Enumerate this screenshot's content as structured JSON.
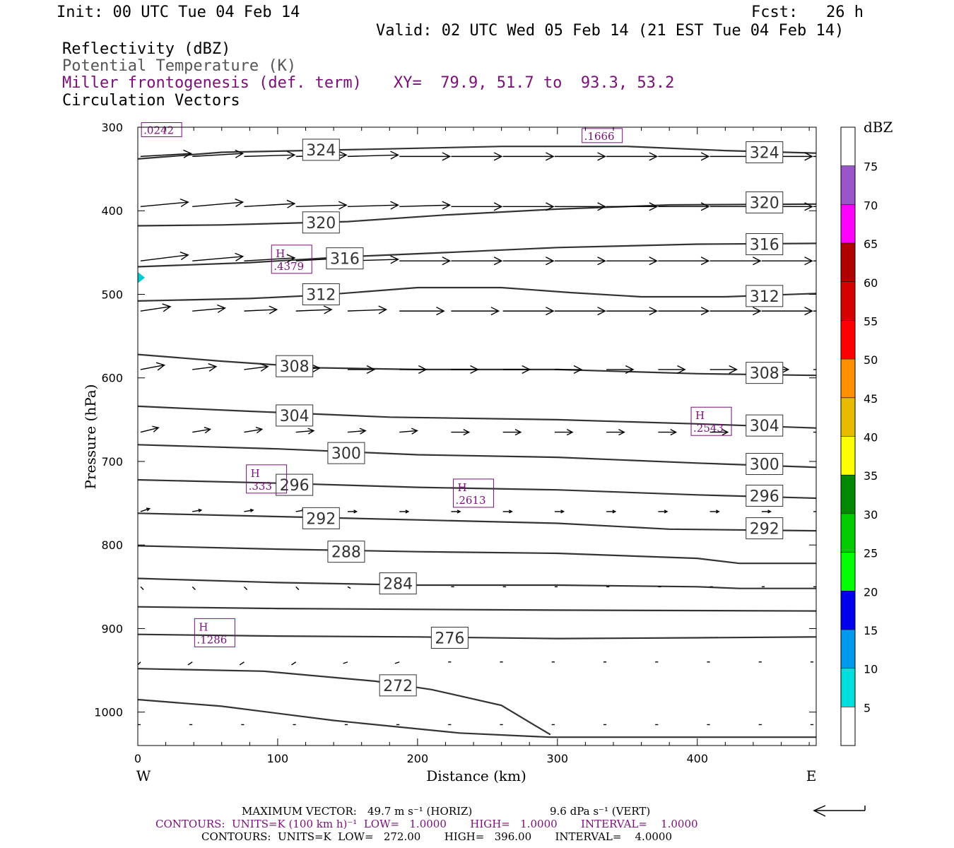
{
  "header": {
    "init": "Init: 00 UTC Tue 04 Feb 14",
    "fcst": "Fcst:   26 h",
    "valid": "Valid: 02 UTC Wed 05 Feb 14 (21 EST Tue 04 Feb 14)",
    "field1": "Reflectivity (dBZ)",
    "field2": "Potential Temperature (K)",
    "field3": "Miller frontogenesis (def. term)",
    "xy": "XY=  79.9, 51.7 to  93.3, 53.2",
    "field4": "Circulation Vectors"
  },
  "footer": {
    "max_vector_label": "MAXIMUM VECTOR:",
    "max_vector_horiz": "49.7 m s⁻¹ (HORIZ)",
    "max_vector_vert": "9.6 dPa s⁻¹ (VERT)",
    "contours_frontogenesis": "CONTOURS:  UNITS=K (100 km h)⁻¹  LOW=   1.0000       HIGH=   1.0000       INTERVAL=    1.0000",
    "contours_theta": "CONTOURS:  UNITS=K  LOW=   272.00       HIGH=   396.00       INTERVAL=    4.0000"
  },
  "colors": {
    "purple": "#7a0f7a",
    "contour": "#333333",
    "arrow": "#000000"
  },
  "chart_data": {
    "type": "cross-section",
    "xlabel": "Distance (km)",
    "ylabel": "Pressure (hPa)",
    "xlim": [
      0,
      485
    ],
    "ylim": [
      1040,
      300
    ],
    "xticks": [
      0,
      100,
      200,
      300,
      400
    ],
    "yticks": [
      300,
      400,
      500,
      600,
      700,
      800,
      900,
      1000
    ],
    "left_end_label": "W",
    "right_end_label": "E",
    "theta_contours": [
      {
        "value": 324,
        "label": "324",
        "points": [
          [
            0,
            338
          ],
          [
            60,
            330
          ],
          [
            150,
            327
          ],
          [
            260,
            323
          ],
          [
            350,
            323
          ],
          [
            420,
            328
          ],
          [
            485,
            331
          ]
        ],
        "label_at": [
          [
            131,
            327
          ],
          [
            448,
            330
          ]
        ]
      },
      {
        "value": 320,
        "label": "320",
        "points": [
          [
            0,
            418
          ],
          [
            60,
            417
          ],
          [
            150,
            413
          ],
          [
            220,
            405
          ],
          [
            300,
            398
          ],
          [
            380,
            393
          ],
          [
            485,
            392
          ]
        ],
        "label_at": [
          [
            131,
            414
          ],
          [
            448,
            390
          ]
        ]
      },
      {
        "value": 316,
        "label": "316",
        "points": [
          [
            0,
            467
          ],
          [
            80,
            462
          ],
          [
            150,
            455
          ],
          [
            220,
            450
          ],
          [
            300,
            444
          ],
          [
            400,
            440
          ],
          [
            485,
            439
          ]
        ],
        "label_at": [
          [
            148,
            457
          ],
          [
            448,
            440
          ]
        ]
      },
      {
        "value": 312,
        "label": "312",
        "points": [
          [
            0,
            508
          ],
          [
            80,
            505
          ],
          [
            130,
            501
          ],
          [
            200,
            492
          ],
          [
            260,
            492
          ],
          [
            310,
            498
          ],
          [
            360,
            503
          ],
          [
            420,
            503
          ],
          [
            485,
            499
          ]
        ],
        "label_at": [
          [
            131,
            500
          ],
          [
            448,
            502
          ]
        ]
      },
      {
        "value": 308,
        "label": "308",
        "points": [
          [
            0,
            572
          ],
          [
            60,
            580
          ],
          [
            130,
            588
          ],
          [
            200,
            590
          ],
          [
            300,
            590
          ],
          [
            400,
            595
          ],
          [
            485,
            597
          ]
        ],
        "label_at": [
          [
            112,
            586
          ],
          [
            448,
            594
          ]
        ]
      },
      {
        "value": 304,
        "label": "304",
        "points": [
          [
            0,
            634
          ],
          [
            80,
            640
          ],
          [
            180,
            647
          ],
          [
            300,
            650
          ],
          [
            400,
            655
          ],
          [
            485,
            660
          ]
        ],
        "label_at": [
          [
            112,
            645
          ],
          [
            448,
            657
          ]
        ]
      },
      {
        "value": 300,
        "label": "300",
        "points": [
          [
            0,
            680
          ],
          [
            100,
            685
          ],
          [
            200,
            692
          ],
          [
            300,
            695
          ],
          [
            400,
            702
          ],
          [
            485,
            707
          ]
        ],
        "label_at": [
          [
            149,
            690
          ],
          [
            448,
            703
          ]
        ]
      },
      {
        "value": 296,
        "label": "296",
        "points": [
          [
            0,
            722
          ],
          [
            100,
            726
          ],
          [
            200,
            731
          ],
          [
            300,
            734
          ],
          [
            400,
            740
          ],
          [
            485,
            744
          ]
        ],
        "label_at": [
          [
            112,
            728
          ],
          [
            448,
            741
          ]
        ]
      },
      {
        "value": 292,
        "label": "292",
        "points": [
          [
            0,
            762
          ],
          [
            100,
            766
          ],
          [
            200,
            770
          ],
          [
            300,
            774
          ],
          [
            380,
            781
          ],
          [
            485,
            783
          ]
        ],
        "label_at": [
          [
            131,
            768
          ],
          [
            448,
            780
          ]
        ]
      },
      {
        "value": 288,
        "label": "288",
        "points": [
          [
            0,
            801
          ],
          [
            100,
            805
          ],
          [
            200,
            808
          ],
          [
            300,
            810
          ],
          [
            400,
            816
          ],
          [
            430,
            822
          ],
          [
            485,
            822
          ]
        ],
        "label_at": [
          [
            149,
            808
          ],
          [
            0,
            0
          ]
        ]
      },
      {
        "value": 284,
        "label": "284",
        "points": [
          [
            0,
            840
          ],
          [
            100,
            845
          ],
          [
            200,
            848
          ],
          [
            300,
            848
          ],
          [
            400,
            850
          ],
          [
            430,
            852
          ],
          [
            485,
            852
          ]
        ],
        "label_at": [
          [
            186,
            846
          ],
          [
            0,
            0
          ]
        ]
      },
      {
        "value": 280,
        "label": "",
        "points": [
          [
            0,
            874
          ],
          [
            100,
            876
          ],
          [
            200,
            877
          ],
          [
            300,
            878
          ],
          [
            485,
            879
          ]
        ],
        "label_at": []
      },
      {
        "value": 276,
        "label": "276",
        "points": [
          [
            0,
            907
          ],
          [
            100,
            909
          ],
          [
            200,
            910
          ],
          [
            300,
            912
          ],
          [
            400,
            911
          ],
          [
            485,
            910
          ]
        ],
        "label_at": [
          [
            223,
            911
          ],
          [
            0,
            0
          ]
        ]
      },
      {
        "value": 272,
        "label": "272",
        "points": [
          [
            0,
            948
          ],
          [
            90,
            951
          ],
          [
            170,
            963
          ],
          [
            210,
            973
          ],
          [
            260,
            992
          ],
          [
            280,
            1012
          ],
          [
            295,
            1027
          ]
        ],
        "label_at": [
          [
            186,
            968
          ],
          [
            0,
            0
          ]
        ]
      },
      {
        "value": 268,
        "label": "",
        "points": [
          [
            0,
            985
          ],
          [
            60,
            993
          ],
          [
            140,
            1010
          ],
          [
            230,
            1025
          ],
          [
            295,
            1030
          ],
          [
            485,
            1030
          ]
        ],
        "label_at": []
      }
    ],
    "frontogenesis_maxima": [
      {
        "letter": "",
        "value": ".0242",
        "x": 17,
        "p": 303
      },
      {
        "letter": "",
        "value": ".1666",
        "x": 332,
        "p": 310
      },
      {
        "letter": "H",
        "value": ".4379",
        "x": 110,
        "p": 458
      },
      {
        "letter": "H",
        "value": ".2543",
        "x": 410,
        "p": 652
      },
      {
        "letter": "H",
        "value": ".333",
        "x": 92,
        "p": 721
      },
      {
        "letter": "H",
        "value": ".2613",
        "x": 240,
        "p": 738
      },
      {
        "letter": "H",
        "value": ".1286",
        "x": 55,
        "p": 905
      }
    ],
    "vector_rows": [
      {
        "p": 335,
        "x": [
          0,
          37,
          74,
          111,
          148,
          185,
          222,
          259,
          296,
          333,
          370,
          407,
          444,
          481
        ],
        "u": [
          34,
          34,
          34,
          34,
          34,
          34,
          34,
          34,
          34,
          34,
          34,
          34,
          34,
          34
        ],
        "w": [
          2,
          2,
          1,
          1,
          1,
          0,
          0,
          0,
          0,
          0,
          0,
          0,
          0,
          0
        ]
      },
      {
        "p": 395,
        "x": [
          0,
          37,
          74,
          111,
          148,
          185,
          222,
          259,
          296,
          333,
          370,
          407,
          444,
          481
        ],
        "u": [
          32,
          34,
          34,
          34,
          34,
          34,
          34,
          34,
          34,
          34,
          34,
          34,
          34,
          34
        ],
        "w": [
          3,
          3,
          2,
          1,
          1,
          1,
          0,
          0,
          0,
          0,
          0,
          0,
          0,
          0
        ]
      },
      {
        "p": 460,
        "x": [
          0,
          37,
          74,
          111,
          148,
          185,
          222,
          259,
          296,
          333,
          370,
          407,
          444,
          481
        ],
        "u": [
          32,
          34,
          34,
          34,
          34,
          34,
          34,
          34,
          34,
          34,
          34,
          34,
          34,
          34
        ],
        "w": [
          4,
          3,
          2,
          2,
          1,
          0,
          0,
          0,
          0,
          0,
          0,
          0,
          0,
          0
        ]
      },
      {
        "p": 520,
        "x": [
          0,
          37,
          74,
          111,
          148,
          185,
          222,
          259,
          296,
          333,
          370,
          407,
          444,
          481
        ],
        "u": [
          20,
          22,
          22,
          24,
          26,
          30,
          32,
          34,
          34,
          34,
          34,
          34,
          34,
          34
        ],
        "w": [
          3,
          2,
          1,
          1,
          1,
          0,
          0,
          0,
          0,
          0,
          0,
          0,
          0,
          0
        ]
      },
      {
        "p": 590,
        "x": [
          0,
          37,
          74,
          111,
          148,
          185,
          222,
          259,
          296,
          333,
          370,
          407,
          444,
          481
        ],
        "u": [
          16,
          16,
          16,
          16,
          18,
          18,
          18,
          18,
          18,
          18,
          18,
          18,
          18,
          18
        ],
        "w": [
          3,
          2,
          2,
          1,
          0,
          0,
          0,
          0,
          0,
          0,
          0,
          0,
          0,
          0
        ]
      },
      {
        "p": 665,
        "x": [
          0,
          37,
          74,
          111,
          148,
          185,
          222,
          259,
          296,
          333,
          370,
          407,
          444,
          481
        ],
        "u": [
          12,
          12,
          12,
          12,
          12,
          12,
          12,
          12,
          12,
          12,
          12,
          12,
          12,
          12
        ],
        "w": [
          3,
          2,
          2,
          1,
          1,
          1,
          0,
          0,
          0,
          0,
          0,
          0,
          0,
          0
        ]
      },
      {
        "p": 760,
        "x": [
          0,
          37,
          74,
          111,
          148,
          185,
          222,
          259,
          296,
          333,
          370,
          407,
          444,
          481
        ],
        "u": [
          6,
          6,
          6,
          6,
          6,
          6,
          6,
          6,
          6,
          6,
          6,
          6,
          6,
          6
        ],
        "w": [
          2,
          1,
          1,
          1,
          0,
          0,
          0,
          0,
          0,
          0,
          0,
          0,
          0,
          0
        ]
      },
      {
        "p": 850,
        "x": [
          0,
          37,
          74,
          111,
          148,
          185,
          222,
          259,
          296,
          333,
          370,
          407,
          444,
          481
        ],
        "u": [
          2,
          2,
          2,
          2,
          2,
          2,
          2,
          2,
          2,
          2,
          2,
          2,
          2,
          2
        ],
        "w": [
          -2,
          -2,
          -2,
          -2,
          -1,
          -1,
          0,
          0,
          0,
          0,
          0,
          0,
          0,
          0
        ]
      },
      {
        "p": 940,
        "x": [
          0,
          37,
          74,
          111,
          148,
          185,
          222,
          259,
          296,
          333,
          370,
          407,
          444,
          481
        ],
        "u": [
          -2,
          -3,
          -3,
          -3,
          -3,
          -3,
          -2,
          -2,
          -2,
          -2,
          -2,
          -2,
          -2,
          -2
        ],
        "w": [
          -2,
          -2,
          -2,
          -2,
          -1,
          -1,
          0,
          0,
          0,
          0,
          0,
          0,
          0,
          0
        ]
      },
      {
        "p": 1015,
        "x": [
          0,
          37,
          74,
          111,
          148,
          185,
          222,
          259,
          296,
          333,
          370,
          407,
          444,
          481
        ],
        "u": [
          -2,
          -2,
          -2,
          -2,
          -2,
          -2,
          -2,
          -2,
          -2,
          -2,
          -2,
          -2,
          -2,
          -2
        ],
        "w": [
          0,
          0,
          0,
          0,
          0,
          0,
          0,
          0,
          0,
          0,
          0,
          0,
          0,
          0
        ]
      }
    ],
    "reflectivity_echo": {
      "x": 0,
      "p": 480,
      "color": "#00cccc"
    },
    "colorbar": {
      "title": "dBZ",
      "levels": [
        "5",
        "10",
        "15",
        "20",
        "25",
        "30",
        "35",
        "40",
        "45",
        "50",
        "55",
        "60",
        "65",
        "70",
        "75"
      ],
      "colors": [
        "#ffffff",
        "#00dede",
        "#0099ee",
        "#0000ee",
        "#00ff00",
        "#00cc00",
        "#008800",
        "#ffff00",
        "#e6bb00",
        "#ff9000",
        "#ff0000",
        "#d60000",
        "#b00000",
        "#ff00ff",
        "#9955c9",
        "#ffffff"
      ]
    }
  }
}
